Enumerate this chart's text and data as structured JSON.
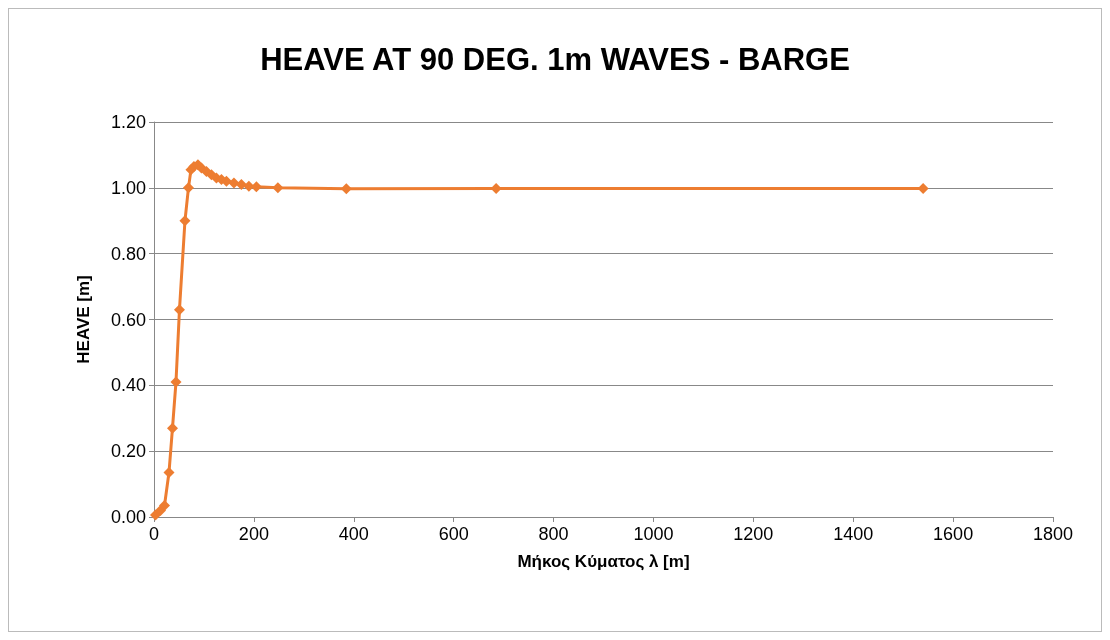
{
  "chart_data": {
    "type": "line",
    "title": "HEAVE AT 90 DEG. 1m WAVES - BARGE",
    "xlabel": "Μήκος Κύματος λ [m]",
    "ylabel": "HEAVE [m]",
    "x": [
      3,
      13,
      21,
      30,
      37,
      44,
      51,
      62,
      69,
      74,
      80,
      88,
      95,
      105,
      115,
      125,
      135,
      145,
      160,
      175,
      190,
      205,
      248,
      385,
      685,
      1540
    ],
    "series": [
      {
        "color": "#ed7d31",
        "values": [
          0.006,
          0.02,
          0.035,
          0.135,
          0.27,
          0.41,
          0.63,
          0.9,
          1.0,
          1.055,
          1.065,
          1.07,
          1.06,
          1.05,
          1.04,
          1.03,
          1.025,
          1.02,
          1.015,
          1.01,
          1.005,
          1.003,
          1.0,
          0.997,
          0.998,
          0.998
        ]
      }
    ],
    "xlim": [
      0,
      1800
    ],
    "xticks": [
      0,
      200,
      400,
      600,
      800,
      1000,
      1200,
      1400,
      1600,
      1800
    ],
    "ylim": [
      0,
      1.2
    ],
    "yticks": [
      {
        "value": 0,
        "label": "0.00"
      },
      {
        "value": 0.2,
        "label": "0.20"
      },
      {
        "value": 0.4,
        "label": "0.40"
      },
      {
        "value": 0.6,
        "label": "0.60"
      },
      {
        "value": 0.8,
        "label": "0.80"
      },
      {
        "value": 1,
        "label": "1.00"
      },
      {
        "value": 1.2,
        "label": "1.20"
      }
    ],
    "grid": "y",
    "marker": "diamond",
    "line_style": "solid"
  }
}
